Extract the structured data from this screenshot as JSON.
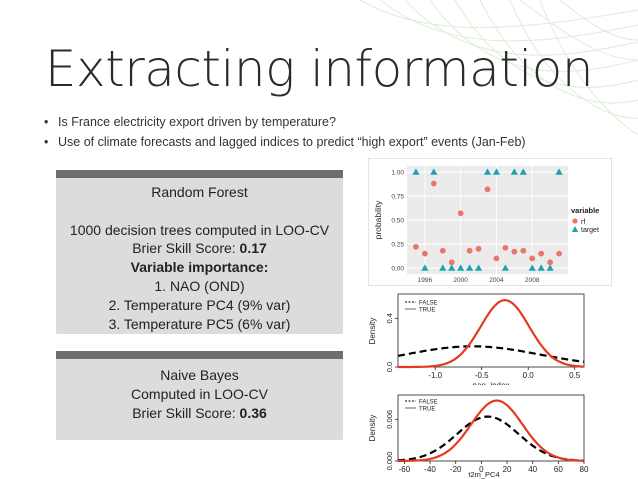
{
  "title": "Extracting information",
  "bullets": [
    "Is France electricity export driven by temperature?",
    "Use of climate forecasts and lagged indices to predict “high export” events (Jan-Feb)"
  ],
  "random_forest": {
    "heading": "Random Forest",
    "line1": "1000 decision trees  computed in LOO-CV",
    "brier_label": "Brier Skill Score: ",
    "brier_value": "0.17",
    "importance_heading": "Variable importance:",
    "items": [
      "1. NAO (OND)",
      "2. Temperature PC4 (9% var)",
      "3. Temperature PC5 (6% var)"
    ]
  },
  "naive_bayes": {
    "heading": "Naive Bayes",
    "line1": "Computed in LOO-CV",
    "brier_label": "Brier Skill Score: ",
    "brier_value": "0.36"
  },
  "colors": {
    "rf": "#e8776a",
    "target": "#1ca3ad",
    "density_true": "#e53a1f",
    "density_false": "#000000",
    "box_bg": "#dcdcdc",
    "box_header": "#6e6e6e"
  },
  "chart_data": [
    {
      "type": "scatter",
      "xlabel": "",
      "ylabel": "probability",
      "ylim": [
        0,
        1
      ],
      "xlim": [
        1994,
        2012
      ],
      "xticks": [
        "1996",
        "2000",
        "2004",
        "2008"
      ],
      "yticks": [
        "0.00",
        "0.25",
        "0.50",
        "0.75",
        "1.00"
      ],
      "legend_title": "variable",
      "legend_position": "right",
      "series": [
        {
          "name": "rf",
          "x": [
            1995,
            1996,
            1997,
            1998,
            1999,
            2000,
            2001,
            2002,
            2003,
            2004,
            2005,
            2006,
            2007,
            2008,
            2009,
            2010,
            2011
          ],
          "y": [
            0.22,
            0.15,
            0.88,
            0.18,
            0.06,
            0.57,
            0.18,
            0.2,
            0.82,
            0.1,
            0.21,
            0.17,
            0.18,
            0.1,
            0.15,
            0.06,
            0.15
          ]
        },
        {
          "name": "target",
          "x": [
            1995,
            1996,
            1997,
            1998,
            1999,
            2000,
            2001,
            2002,
            2003,
            2004,
            2005,
            2006,
            2007,
            2008,
            2009,
            2010,
            2011
          ],
          "y": [
            1,
            0,
            1,
            0,
            0,
            0,
            0,
            0,
            1,
            1,
            0,
            1,
            1,
            0,
            0,
            0,
            1
          ]
        }
      ]
    },
    {
      "type": "line",
      "xlabel": "nao_index",
      "ylabel": "Density",
      "xlim": [
        -1.4,
        0.6
      ],
      "ylim": [
        0,
        0.6
      ],
      "xticks": [
        "-1.0",
        "-0.5",
        "0.0",
        "0.5"
      ],
      "yticks": [
        "0.0",
        "0.4"
      ],
      "legend_position": "top-left",
      "series": [
        {
          "name": "FALSE",
          "style": "dashed",
          "mean": -0.6,
          "sd": 0.72,
          "peak": 0.17
        },
        {
          "name": "TRUE",
          "style": "solid",
          "mean": -0.25,
          "sd": 0.26,
          "peak": 0.55
        }
      ]
    },
    {
      "type": "line",
      "xlabel": "t2m_PC4",
      "ylabel": "Density",
      "xlim": [
        -65,
        80
      ],
      "ylim": [
        0,
        0.0095
      ],
      "xticks": [
        "-60",
        "-40",
        "-20",
        "0",
        "20",
        "40",
        "60",
        "80"
      ],
      "yticks": [
        "0.000",
        "0.006"
      ],
      "legend_position": "top-left",
      "series": [
        {
          "name": "FALSE",
          "style": "dashed",
          "mean": 5,
          "sd": 24,
          "peak": 0.0064
        },
        {
          "name": "TRUE",
          "style": "solid",
          "mean": 12,
          "sd": 20,
          "peak": 0.0087
        }
      ]
    }
  ]
}
